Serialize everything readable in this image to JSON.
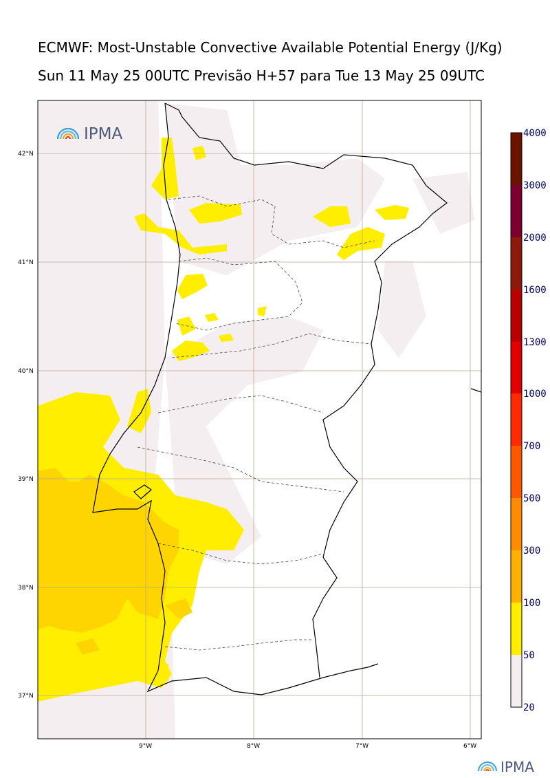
{
  "header": {
    "title": "ECMWF: Most-Unstable Convective Available Potential Energy (J/Kg)",
    "subtitle": "Sun 11 May 25 00UTC Previsão H+57 para Tue 13 May 25 09UTC"
  },
  "map": {
    "lat_labels": [
      "42°N",
      "41°N",
      "40°N",
      "39°N",
      "38°N",
      "37°N"
    ],
    "lon_labels": [
      "9°W",
      "8°W",
      "7°W",
      "6°W"
    ],
    "logo_text": "IPMA"
  },
  "colorbar": {
    "labels": [
      "4000",
      "3000",
      "2000",
      "1600",
      "1300",
      "1000",
      "700",
      "500",
      "300",
      "100",
      "50",
      "20"
    ],
    "colors": [
      "#6b1200",
      "#7a0030",
      "#8c1a0a",
      "#b80000",
      "#e00000",
      "#ff2a00",
      "#ff5a00",
      "#ff8c00",
      "#ffb000",
      "#ffd500",
      "#ffee00",
      "#f5eef0"
    ]
  },
  "footer": {
    "logo_text": "IPMA"
  },
  "colors": {
    "cape_low": "#f5eef0",
    "cape_50": "#ffee00",
    "cape_100": "#ffd500",
    "grid": "#b8a890"
  }
}
